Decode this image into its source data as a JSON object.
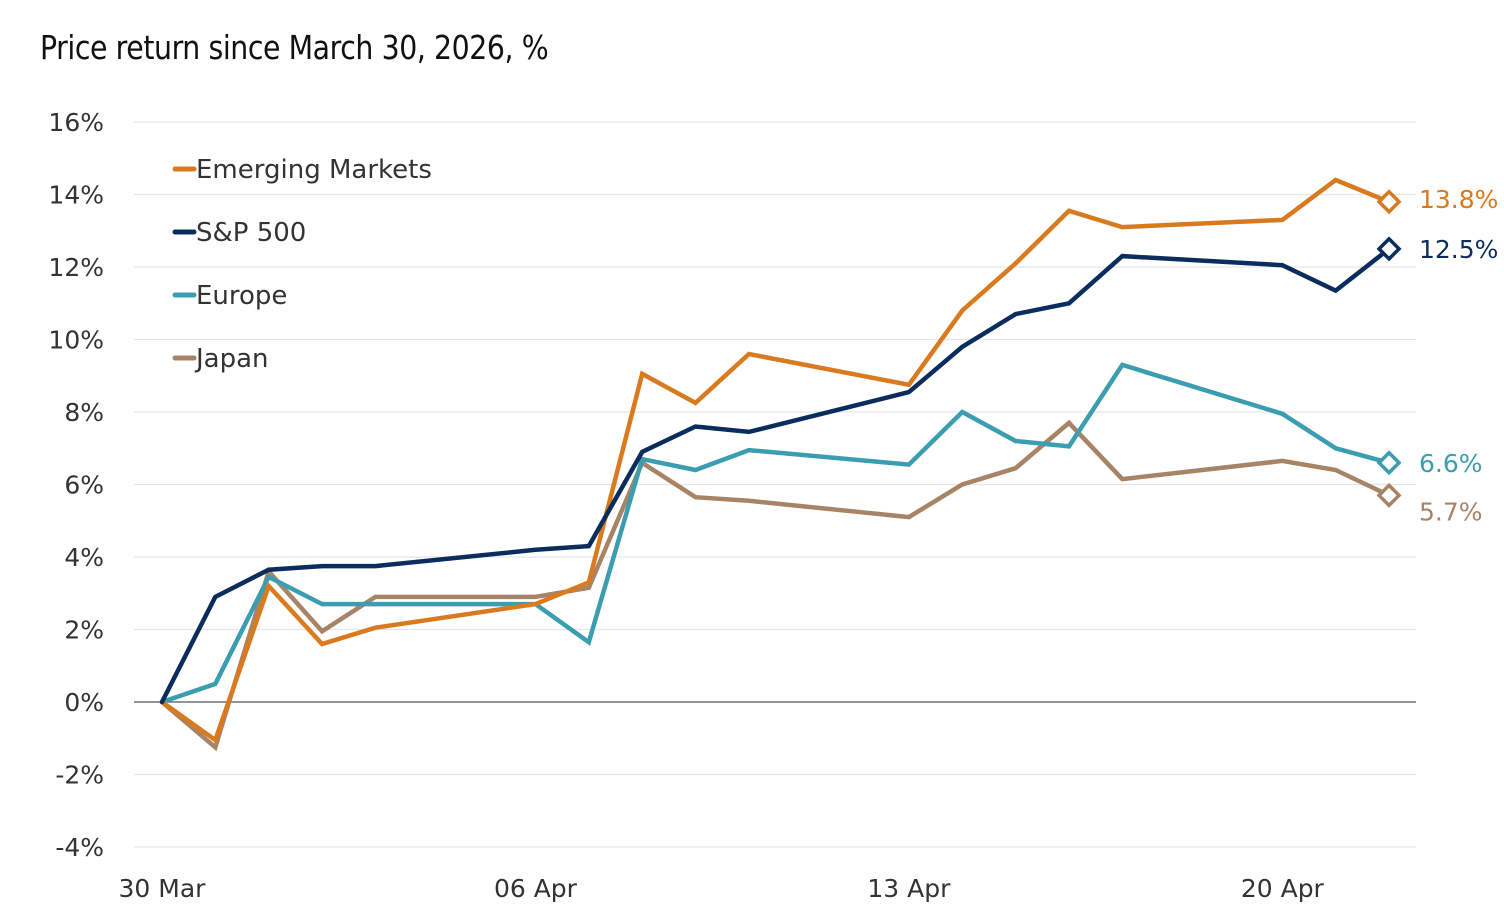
{
  "chart_data": {
    "type": "line",
    "title": "Price return since March 30, 2026, %",
    "xlabel": "",
    "ylabel": "",
    "ylim": [
      -4,
      16
    ],
    "yticks": [
      -4,
      -2,
      0,
      2,
      4,
      6,
      8,
      10,
      12,
      14,
      16
    ],
    "ytick_labels": [
      "-4%",
      "-2%",
      "0%",
      "2%",
      "4%",
      "6%",
      "8%",
      "10%",
      "12%",
      "14%",
      "16%"
    ],
    "grid": true,
    "legend_position": "upper-left",
    "x_tick_labels": [
      "30 Mar",
      "06 Apr",
      "13 Apr",
      "20 Apr"
    ],
    "x": [
      "30 Mar",
      "31 Mar",
      "01 Apr",
      "02 Apr",
      "03 Apr",
      "06 Apr",
      "07 Apr",
      "08 Apr",
      "09 Apr",
      "10 Apr",
      "13 Apr",
      "14 Apr",
      "15 Apr",
      "16 Apr",
      "17 Apr",
      "20 Apr",
      "21 Apr",
      "22 Apr"
    ],
    "x_day_index": [
      0,
      1,
      2,
      3,
      4,
      7,
      8,
      9,
      10,
      11,
      14,
      15,
      16,
      17,
      18,
      21,
      22,
      23
    ],
    "series": [
      {
        "name": "Emerging Markets",
        "color": "#D97A1E",
        "values": [
          0,
          -1.05,
          3.2,
          1.6,
          2.05,
          2.7,
          3.3,
          9.05,
          8.25,
          9.6,
          8.75,
          10.8,
          12.1,
          13.55,
          13.1,
          13.3,
          14.4,
          13.8
        ],
        "end_label": "13.8%"
      },
      {
        "name": "S&P 500",
        "color": "#0B2D5E",
        "values": [
          0,
          2.9,
          3.65,
          3.75,
          3.75,
          4.2,
          4.3,
          6.9,
          7.6,
          7.45,
          8.55,
          9.8,
          10.7,
          11.0,
          12.3,
          12.05,
          11.35,
          12.5
        ],
        "end_label": "12.5%"
      },
      {
        "name": "Europe",
        "color": "#3A9DB0",
        "values": [
          0,
          0.5,
          3.45,
          2.7,
          2.7,
          2.7,
          1.65,
          6.7,
          6.4,
          6.95,
          6.55,
          8.0,
          7.2,
          7.05,
          9.3,
          7.95,
          7.0,
          6.6
        ],
        "end_label": "6.6%"
      },
      {
        "name": "Japan",
        "color": "#A88466",
        "values": [
          0,
          -1.25,
          3.6,
          1.95,
          2.9,
          2.9,
          3.15,
          6.6,
          5.65,
          5.55,
          5.1,
          6.0,
          6.45,
          7.7,
          6.15,
          6.65,
          6.4,
          5.7
        ],
        "end_label": "5.7%"
      }
    ]
  }
}
